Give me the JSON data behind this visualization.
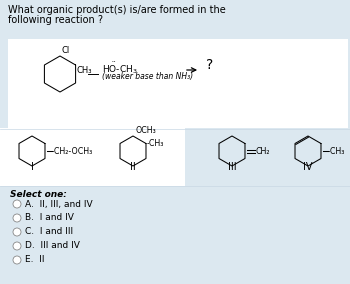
{
  "title_line1": "What organic product(s) is/are formed in the",
  "title_line2": "following reaction ?",
  "bg_color": "#dce8f0",
  "white_color": "#ffffff",
  "options": [
    "A.  II, III, and IV",
    "B.  I and IV",
    "C.  I and III",
    "D.  III and IV",
    "E.  II"
  ],
  "select_one_text": "Select one:",
  "roman_labels": [
    "I",
    "II",
    "III",
    "IV"
  ],
  "font_size_title": 7.0,
  "font_size_body": 6.0,
  "font_size_options": 6.5,
  "font_size_roman": 7.0
}
